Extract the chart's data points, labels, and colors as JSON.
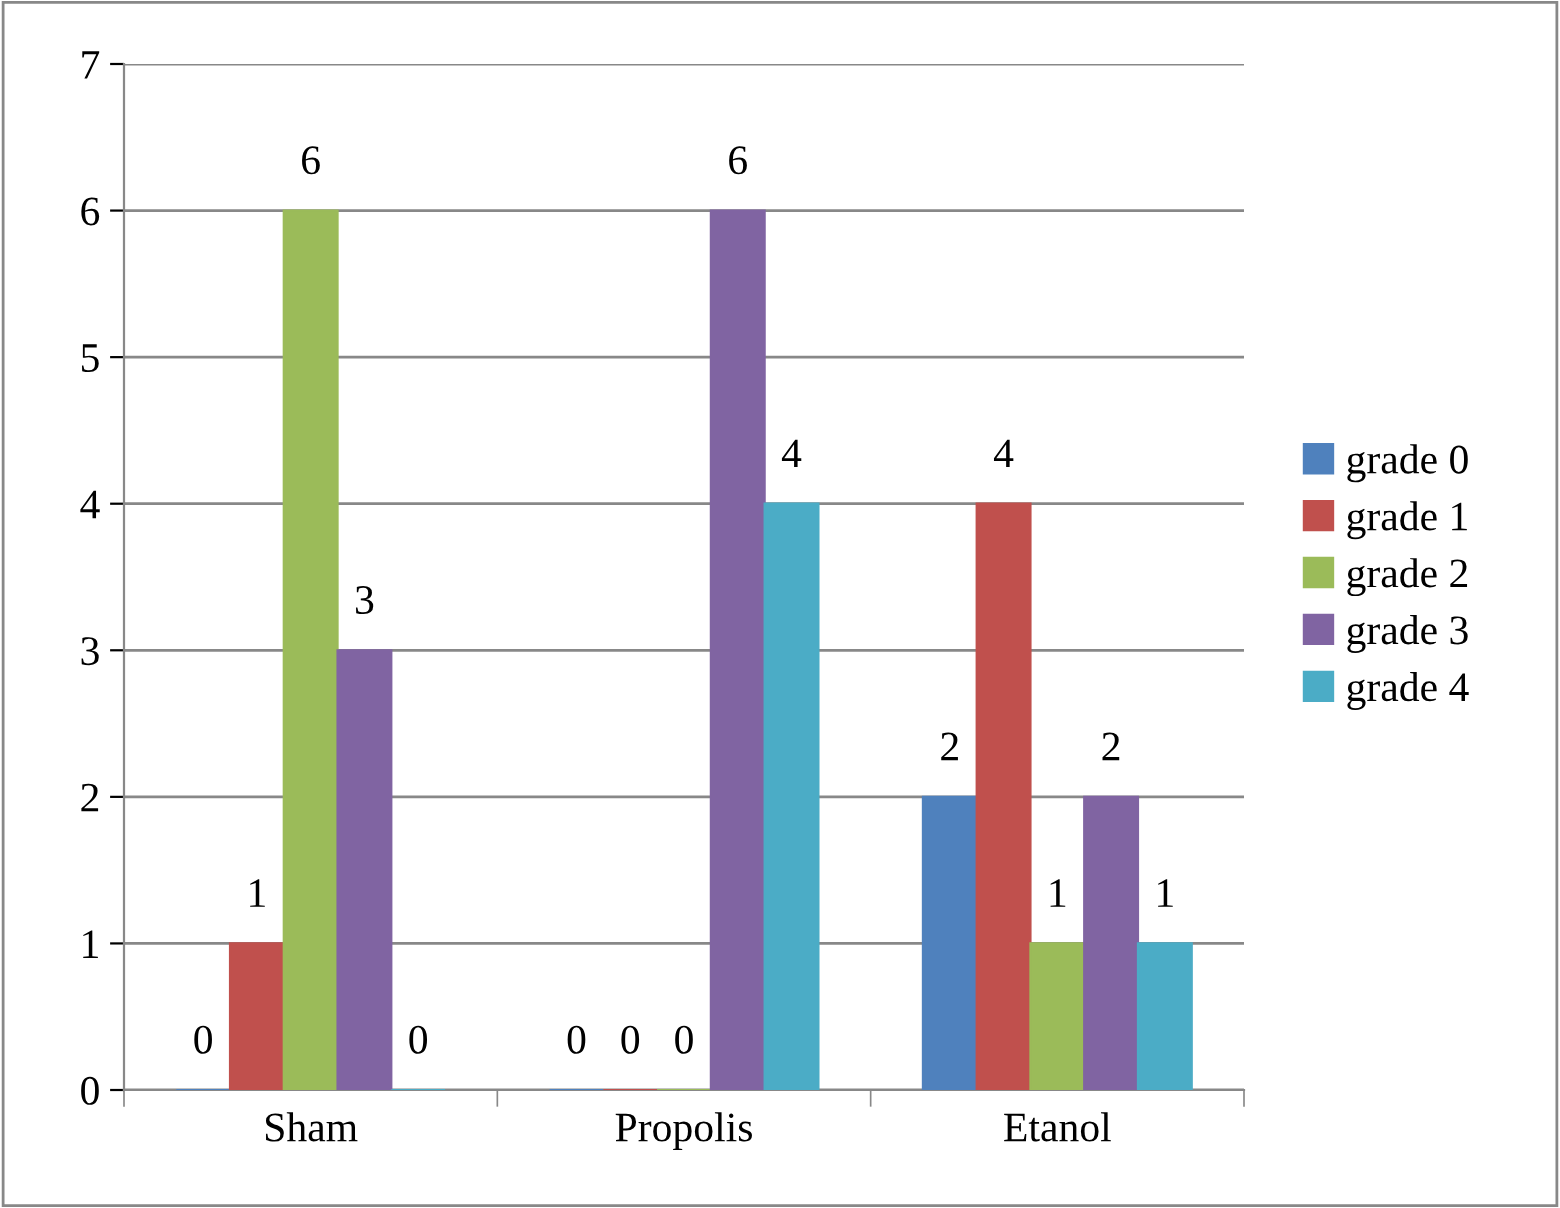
{
  "chart_data": {
    "type": "bar",
    "categories": [
      "Sham",
      "Propolis",
      "Etanol"
    ],
    "series": [
      {
        "name": "grade 0",
        "color": "#4f81bd",
        "values": [
          0,
          0,
          2
        ]
      },
      {
        "name": "grade 1",
        "color": "#c0504d",
        "values": [
          1,
          0,
          4
        ]
      },
      {
        "name": "grade 2",
        "color": "#9bbb59",
        "values": [
          6,
          0,
          1
        ]
      },
      {
        "name": "grade 3",
        "color": "#8064a2",
        "values": [
          3,
          6,
          2
        ]
      },
      {
        "name": "grade 4",
        "color": "#4bacc6",
        "values": [
          0,
          4,
          1
        ]
      }
    ],
    "ylim": [
      0,
      7
    ],
    "yticks": [
      0,
      1,
      2,
      3,
      4,
      5,
      6,
      7
    ],
    "grid": "y",
    "legend": "right",
    "data_labels": true
  }
}
